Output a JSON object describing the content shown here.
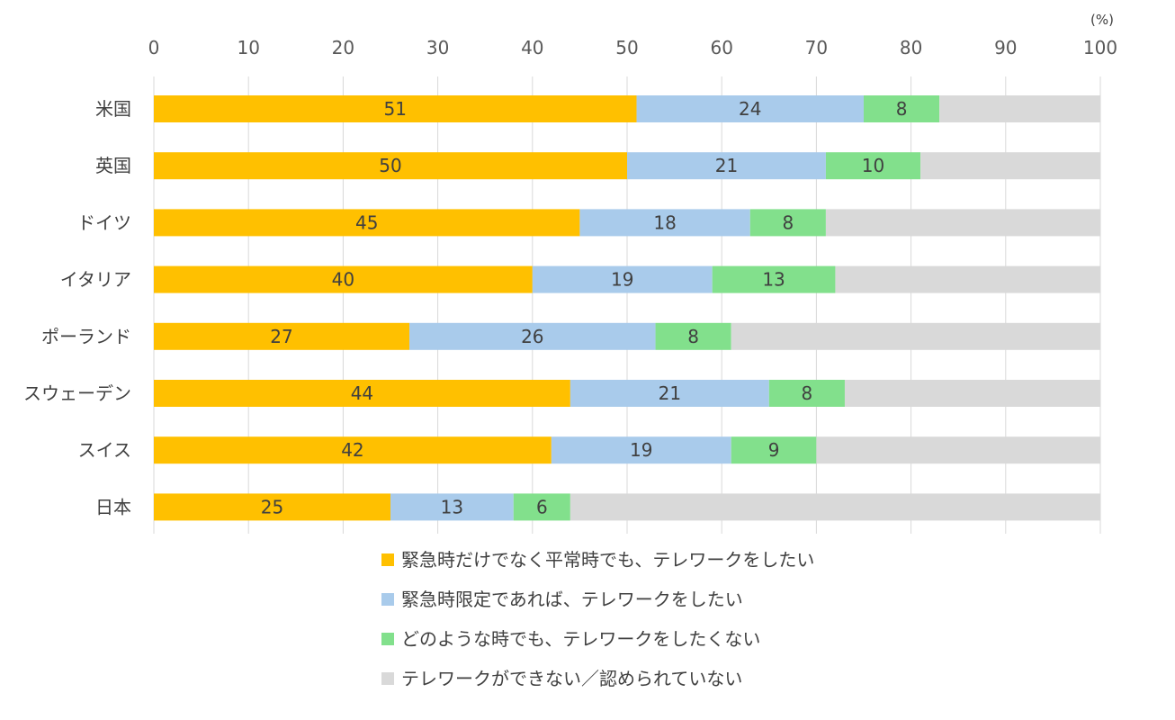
{
  "chart_data": {
    "type": "bar",
    "orientation": "horizontal",
    "stacked": true,
    "unit": "(%)",
    "xlim": [
      0,
      100
    ],
    "x_ticks": [
      0,
      10,
      20,
      30,
      40,
      50,
      60,
      70,
      80,
      90,
      100
    ],
    "grid": true,
    "legend_position": "bottom",
    "categories": [
      "米国",
      "英国",
      "ドイツ",
      "イタリア",
      "ポーランド",
      "スウェーデン",
      "スイス",
      "日本"
    ],
    "series": [
      {
        "name": "緊急時だけでなく平常時でも、テレワークをしたい",
        "color": "#FFC000",
        "values": [
          51,
          50,
          45,
          40,
          27,
          44,
          42,
          25
        ],
        "show_labels": true
      },
      {
        "name": "緊急時限定であれば、テレワークをしたい",
        "color": "#A9CBEB",
        "values": [
          24,
          21,
          18,
          19,
          26,
          21,
          19,
          13
        ],
        "show_labels": true
      },
      {
        "name": "どのような時でも、テレワークをしたくない",
        "color": "#82E08C",
        "values": [
          8,
          10,
          8,
          13,
          8,
          8,
          9,
          6
        ],
        "show_labels": true
      },
      {
        "name": "テレワークができない／認められていない",
        "color": "#D9D9D9",
        "values": [
          17,
          19,
          29,
          28,
          39,
          27,
          30,
          56
        ],
        "show_labels": false
      }
    ]
  }
}
